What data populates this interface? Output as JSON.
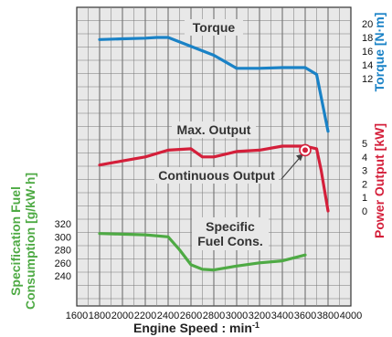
{
  "chart_data": {
    "type": "line",
    "xlabel": "Engine Speed : min",
    "xlabel_sup": "-1",
    "x_ticks": [
      1600,
      1800,
      2000,
      2200,
      2400,
      2600,
      2800,
      3000,
      3200,
      3400,
      3600,
      3800,
      4000
    ],
    "xlim": [
      1600,
      4000
    ],
    "grid": true,
    "axes": {
      "torque": {
        "label": "Torque [N·m]",
        "ticks": [
          12,
          14,
          16,
          18,
          20
        ],
        "range": [
          12,
          20
        ]
      },
      "power": {
        "label": "Power Output [kW]",
        "ticks": [
          0,
          1,
          2,
          3,
          4,
          5
        ],
        "range": [
          0,
          5
        ]
      },
      "fuel": {
        "label": "Specification Fuel Consumption [g/kW·h]",
        "ticks": [
          240,
          260,
          280,
          300,
          320
        ],
        "range": [
          240,
          320
        ]
      }
    },
    "series": [
      {
        "name": "Torque",
        "axis": "torque",
        "color": "#1a82c6",
        "x": [
          1800,
          2000,
          2200,
          2300,
          2400,
          2600,
          2800,
          3000,
          3200,
          3400,
          3600,
          3700,
          3800
        ],
        "y": [
          17.7,
          17.8,
          17.9,
          18.0,
          18.0,
          16.7,
          15.4,
          13.5,
          13.5,
          13.6,
          13.6,
          12.6,
          4.3
        ]
      },
      {
        "name": "Max. Output",
        "axis": "power",
        "color": "#d41f3a",
        "x": [
          1800,
          2000,
          2200,
          2400,
          2600,
          2700,
          2800,
          3000,
          3200,
          3400,
          3500,
          3600,
          3700,
          3740,
          3800
        ],
        "y": [
          3.4,
          3.7,
          4.0,
          4.5,
          4.6,
          4.0,
          4.0,
          4.4,
          4.5,
          4.8,
          4.8,
          4.8,
          4.6,
          3.0,
          0.0
        ]
      },
      {
        "name": "Specific Fuel Cons.",
        "axis": "fuel",
        "color": "#4eaa44",
        "x": [
          1800,
          2000,
          2200,
          2400,
          2500,
          2600,
          2700,
          2800,
          3000,
          3200,
          3400,
          3600
        ],
        "y": [
          305,
          304,
          303,
          300,
          280,
          257,
          250,
          249,
          255,
          260,
          263,
          272
        ]
      }
    ],
    "annotations": [
      {
        "text": "Torque"
      },
      {
        "text": "Max. Output"
      },
      {
        "text": "Continuous Output",
        "marker_x": 3600,
        "marker_y": 4.5,
        "marker_color": "#d41f3a"
      },
      {
        "text": "Specific\nFuel Cons."
      }
    ]
  }
}
